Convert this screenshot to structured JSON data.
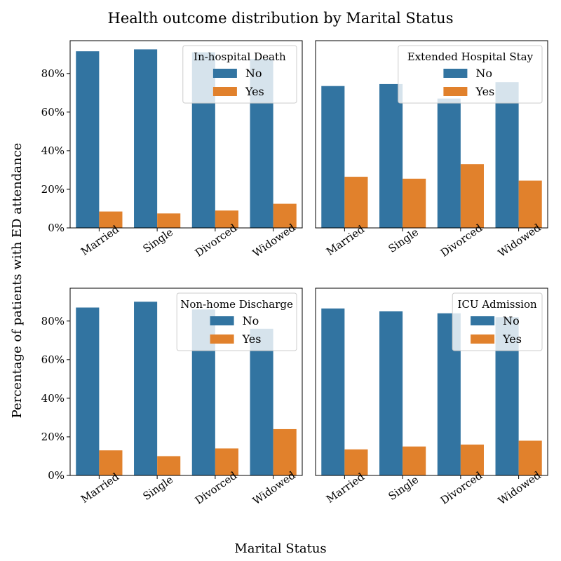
{
  "figure": {
    "title": "Health outcome distribution by Marital Status",
    "xlabel": "Marital Status",
    "ylabel": "Percentage of patients with ED attendance"
  },
  "chart_data": [
    {
      "type": "bar",
      "title": "",
      "legend_title": "In-hospital Death",
      "legend_position": "upper-right",
      "categories": [
        "Married",
        "Single",
        "Divorced",
        "Widowed"
      ],
      "series": [
        {
          "name": "No",
          "color": "#3274a1",
          "values": [
            91.5,
            92.5,
            91.0,
            87.5
          ]
        },
        {
          "name": "Yes",
          "color": "#e1812c",
          "values": [
            8.5,
            7.5,
            9.0,
            12.5
          ]
        }
      ],
      "ylim": [
        0,
        97
      ],
      "yticks": [
        0,
        20,
        40,
        60,
        80
      ],
      "ytick_labels": [
        "0%",
        "20%",
        "40%",
        "60%",
        "80%"
      ],
      "show_yticks": true,
      "grid": false
    },
    {
      "type": "bar",
      "title": "",
      "legend_title": "Extended Hospital Stay",
      "legend_position": "upper-right",
      "categories": [
        "Married",
        "Single",
        "Divorced",
        "Widowed"
      ],
      "series": [
        {
          "name": "No",
          "color": "#3274a1",
          "values": [
            73.5,
            74.5,
            67.0,
            75.5
          ]
        },
        {
          "name": "Yes",
          "color": "#e1812c",
          "values": [
            26.5,
            25.5,
            33.0,
            24.5
          ]
        }
      ],
      "ylim": [
        0,
        97
      ],
      "yticks": [
        0,
        20,
        40,
        60,
        80
      ],
      "ytick_labels": [],
      "show_yticks": false,
      "grid": false
    },
    {
      "type": "bar",
      "title": "",
      "legend_title": "Non-home Discharge",
      "legend_position": "upper-right",
      "categories": [
        "Married",
        "Single",
        "Divorced",
        "Widowed"
      ],
      "series": [
        {
          "name": "No",
          "color": "#3274a1",
          "values": [
            87.0,
            90.0,
            86.0,
            76.0
          ]
        },
        {
          "name": "Yes",
          "color": "#e1812c",
          "values": [
            13.0,
            10.0,
            14.0,
            24.0
          ]
        }
      ],
      "ylim": [
        0,
        97
      ],
      "yticks": [
        0,
        20,
        40,
        60,
        80
      ],
      "ytick_labels": [
        "0%",
        "20%",
        "40%",
        "60%",
        "80%"
      ],
      "show_yticks": true,
      "grid": false
    },
    {
      "type": "bar",
      "title": "",
      "legend_title": "ICU Admission",
      "legend_position": "upper-right",
      "categories": [
        "Married",
        "Single",
        "Divorced",
        "Widowed"
      ],
      "series": [
        {
          "name": "No",
          "color": "#3274a1",
          "values": [
            86.5,
            85.0,
            84.0,
            82.0
          ]
        },
        {
          "name": "Yes",
          "color": "#e1812c",
          "values": [
            13.5,
            15.0,
            16.0,
            18.0
          ]
        }
      ],
      "ylim": [
        0,
        97
      ],
      "yticks": [
        0,
        20,
        40,
        60,
        80
      ],
      "ytick_labels": [],
      "show_yticks": false,
      "grid": false
    }
  ]
}
